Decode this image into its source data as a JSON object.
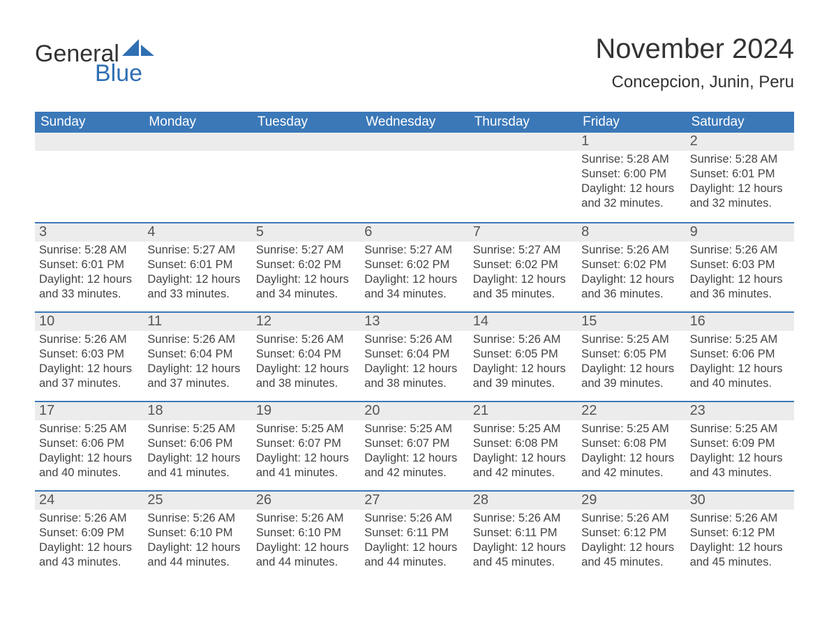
{
  "logo": {
    "word1": "General",
    "word2": "Blue",
    "word1_color": "#333333",
    "word2_color": "#2f6fb3",
    "sail_color": "#2f6fb3"
  },
  "header": {
    "month_title": "November 2024",
    "location": "Concepcion, Junin, Peru"
  },
  "styling": {
    "header_bg": "#3b78b8",
    "header_text_color": "#ffffff",
    "row_separator_color": "#3b78b8",
    "daynum_bar_bg": "#ececec",
    "body_text_color": "#444444",
    "page_bg": "#ffffff",
    "font_family": "Segoe UI / Arial",
    "month_title_fontsize_pt": 30,
    "location_fontsize_pt": 18,
    "weekday_fontsize_pt": 14,
    "daynum_fontsize_pt": 15,
    "body_fontsize_pt": 12
  },
  "calendar": {
    "weekdays": [
      "Sunday",
      "Monday",
      "Tuesday",
      "Wednesday",
      "Thursday",
      "Friday",
      "Saturday"
    ],
    "weeks": [
      [
        {
          "empty": true
        },
        {
          "empty": true
        },
        {
          "empty": true
        },
        {
          "empty": true
        },
        {
          "empty": true
        },
        {
          "day": "1",
          "sunrise": "Sunrise: 5:28 AM",
          "sunset": "Sunset: 6:00 PM",
          "daylight1": "Daylight: 12 hours",
          "daylight2": "and 32 minutes."
        },
        {
          "day": "2",
          "sunrise": "Sunrise: 5:28 AM",
          "sunset": "Sunset: 6:01 PM",
          "daylight1": "Daylight: 12 hours",
          "daylight2": "and 32 minutes."
        }
      ],
      [
        {
          "day": "3",
          "sunrise": "Sunrise: 5:28 AM",
          "sunset": "Sunset: 6:01 PM",
          "daylight1": "Daylight: 12 hours",
          "daylight2": "and 33 minutes."
        },
        {
          "day": "4",
          "sunrise": "Sunrise: 5:27 AM",
          "sunset": "Sunset: 6:01 PM",
          "daylight1": "Daylight: 12 hours",
          "daylight2": "and 33 minutes."
        },
        {
          "day": "5",
          "sunrise": "Sunrise: 5:27 AM",
          "sunset": "Sunset: 6:02 PM",
          "daylight1": "Daylight: 12 hours",
          "daylight2": "and 34 minutes."
        },
        {
          "day": "6",
          "sunrise": "Sunrise: 5:27 AM",
          "sunset": "Sunset: 6:02 PM",
          "daylight1": "Daylight: 12 hours",
          "daylight2": "and 34 minutes."
        },
        {
          "day": "7",
          "sunrise": "Sunrise: 5:27 AM",
          "sunset": "Sunset: 6:02 PM",
          "daylight1": "Daylight: 12 hours",
          "daylight2": "and 35 minutes."
        },
        {
          "day": "8",
          "sunrise": "Sunrise: 5:26 AM",
          "sunset": "Sunset: 6:02 PM",
          "daylight1": "Daylight: 12 hours",
          "daylight2": "and 36 minutes."
        },
        {
          "day": "9",
          "sunrise": "Sunrise: 5:26 AM",
          "sunset": "Sunset: 6:03 PM",
          "daylight1": "Daylight: 12 hours",
          "daylight2": "and 36 minutes."
        }
      ],
      [
        {
          "day": "10",
          "sunrise": "Sunrise: 5:26 AM",
          "sunset": "Sunset: 6:03 PM",
          "daylight1": "Daylight: 12 hours",
          "daylight2": "and 37 minutes."
        },
        {
          "day": "11",
          "sunrise": "Sunrise: 5:26 AM",
          "sunset": "Sunset: 6:04 PM",
          "daylight1": "Daylight: 12 hours",
          "daylight2": "and 37 minutes."
        },
        {
          "day": "12",
          "sunrise": "Sunrise: 5:26 AM",
          "sunset": "Sunset: 6:04 PM",
          "daylight1": "Daylight: 12 hours",
          "daylight2": "and 38 minutes."
        },
        {
          "day": "13",
          "sunrise": "Sunrise: 5:26 AM",
          "sunset": "Sunset: 6:04 PM",
          "daylight1": "Daylight: 12 hours",
          "daylight2": "and 38 minutes."
        },
        {
          "day": "14",
          "sunrise": "Sunrise: 5:26 AM",
          "sunset": "Sunset: 6:05 PM",
          "daylight1": "Daylight: 12 hours",
          "daylight2": "and 39 minutes."
        },
        {
          "day": "15",
          "sunrise": "Sunrise: 5:25 AM",
          "sunset": "Sunset: 6:05 PM",
          "daylight1": "Daylight: 12 hours",
          "daylight2": "and 39 minutes."
        },
        {
          "day": "16",
          "sunrise": "Sunrise: 5:25 AM",
          "sunset": "Sunset: 6:06 PM",
          "daylight1": "Daylight: 12 hours",
          "daylight2": "and 40 minutes."
        }
      ],
      [
        {
          "day": "17",
          "sunrise": "Sunrise: 5:25 AM",
          "sunset": "Sunset: 6:06 PM",
          "daylight1": "Daylight: 12 hours",
          "daylight2": "and 40 minutes."
        },
        {
          "day": "18",
          "sunrise": "Sunrise: 5:25 AM",
          "sunset": "Sunset: 6:06 PM",
          "daylight1": "Daylight: 12 hours",
          "daylight2": "and 41 minutes."
        },
        {
          "day": "19",
          "sunrise": "Sunrise: 5:25 AM",
          "sunset": "Sunset: 6:07 PM",
          "daylight1": "Daylight: 12 hours",
          "daylight2": "and 41 minutes."
        },
        {
          "day": "20",
          "sunrise": "Sunrise: 5:25 AM",
          "sunset": "Sunset: 6:07 PM",
          "daylight1": "Daylight: 12 hours",
          "daylight2": "and 42 minutes."
        },
        {
          "day": "21",
          "sunrise": "Sunrise: 5:25 AM",
          "sunset": "Sunset: 6:08 PM",
          "daylight1": "Daylight: 12 hours",
          "daylight2": "and 42 minutes."
        },
        {
          "day": "22",
          "sunrise": "Sunrise: 5:25 AM",
          "sunset": "Sunset: 6:08 PM",
          "daylight1": "Daylight: 12 hours",
          "daylight2": "and 42 minutes."
        },
        {
          "day": "23",
          "sunrise": "Sunrise: 5:25 AM",
          "sunset": "Sunset: 6:09 PM",
          "daylight1": "Daylight: 12 hours",
          "daylight2": "and 43 minutes."
        }
      ],
      [
        {
          "day": "24",
          "sunrise": "Sunrise: 5:26 AM",
          "sunset": "Sunset: 6:09 PM",
          "daylight1": "Daylight: 12 hours",
          "daylight2": "and 43 minutes."
        },
        {
          "day": "25",
          "sunrise": "Sunrise: 5:26 AM",
          "sunset": "Sunset: 6:10 PM",
          "daylight1": "Daylight: 12 hours",
          "daylight2": "and 44 minutes."
        },
        {
          "day": "26",
          "sunrise": "Sunrise: 5:26 AM",
          "sunset": "Sunset: 6:10 PM",
          "daylight1": "Daylight: 12 hours",
          "daylight2": "and 44 minutes."
        },
        {
          "day": "27",
          "sunrise": "Sunrise: 5:26 AM",
          "sunset": "Sunset: 6:11 PM",
          "daylight1": "Daylight: 12 hours",
          "daylight2": "and 44 minutes."
        },
        {
          "day": "28",
          "sunrise": "Sunrise: 5:26 AM",
          "sunset": "Sunset: 6:11 PM",
          "daylight1": "Daylight: 12 hours",
          "daylight2": "and 45 minutes."
        },
        {
          "day": "29",
          "sunrise": "Sunrise: 5:26 AM",
          "sunset": "Sunset: 6:12 PM",
          "daylight1": "Daylight: 12 hours",
          "daylight2": "and 45 minutes."
        },
        {
          "day": "30",
          "sunrise": "Sunrise: 5:26 AM",
          "sunset": "Sunset: 6:12 PM",
          "daylight1": "Daylight: 12 hours",
          "daylight2": "and 45 minutes."
        }
      ]
    ]
  }
}
